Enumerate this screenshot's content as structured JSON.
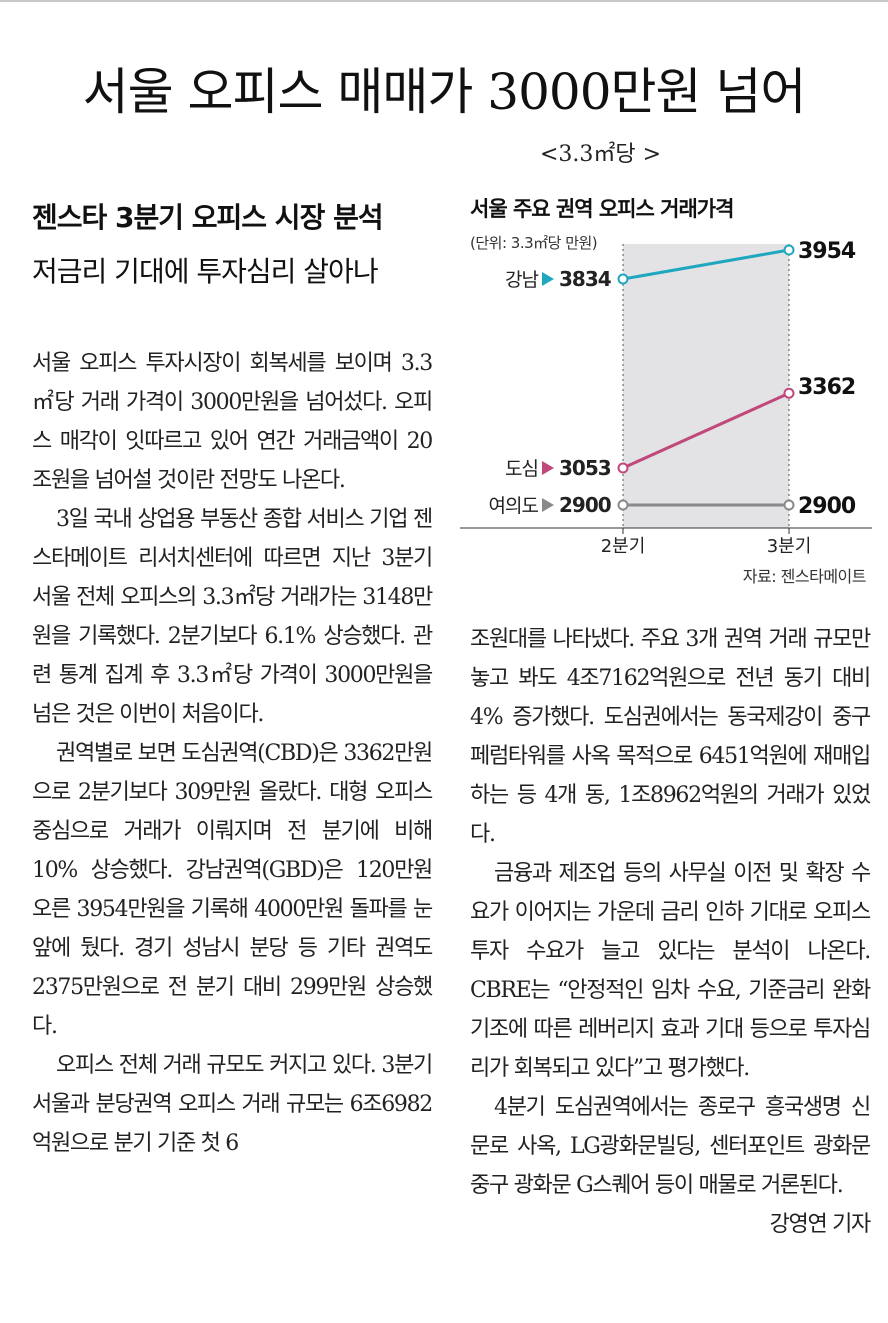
{
  "headline": "서울 오피스 매매가 3000만원 넘어",
  "unit_note": "<3.3㎡당 >",
  "subheadline1": "젠스타 3분기 오피스 시장 분석",
  "subheadline2": "저금리 기대에 투자심리 살아나",
  "chart": {
    "title": "서울 주요 권역 오피스 거래가격",
    "unit": "(단위: 3.3㎡당 만원)",
    "source": "자료: 젠스타메이트"
  },
  "chart_data": {
    "type": "line",
    "x": [
      "2분기",
      "3분기"
    ],
    "series": [
      {
        "name": "강남",
        "values": [
          3834,
          3954
        ],
        "color": "#1ea7bf"
      },
      {
        "name": "도심",
        "values": [
          3053,
          3362
        ],
        "color": "#c1487a"
      },
      {
        "name": "여의도",
        "values": [
          2900,
          2900
        ],
        "color": "#8a8a8a"
      }
    ],
    "value_labels": {
      "start": [
        "3834",
        "3053",
        "2900"
      ],
      "end": [
        "3954",
        "3362",
        "2900"
      ]
    },
    "shaded_band_between_x": true
  },
  "left_paragraphs": [
    "서울 오피스 투자시장이 회복세를 보이며 3.3㎡당 거래 가격이 3000만원을 넘어섰다. 오피스 매각이 잇따르고 있어 연간 거래금액이 20조원을 넘어설 것이란 전망도 나온다.",
    "3일 국내 상업용 부동산 종합 서비스 기업 젠스타메이트 리서치센터에 따르면 지난 3분기 서울 전체 오피스의 3.3㎡당 거래가는 3148만원을 기록했다. 2분기보다 6.1% 상승했다. 관련 통계 집계 후 3.3㎡당 가격이 3000만원을 넘은 것은 이번이 처음이다.",
    "권역별로 보면 도심권역(CBD)은 3362만원으로 2분기보다 309만원 올랐다. 대형 오피스 중심으로 거래가 이뤄지며 전 분기에 비해 10% 상승했다. 강남권역(GBD)은 120만원 오른 3954만원을 기록해 4000만원 돌파를 눈앞에 뒀다. 경기 성남시 분당 등 기타 권역도 2375만원으로 전 분기 대비 299만원 상승했다.",
    "오피스 전체 거래 규모도 커지고 있다. 3분기 서울과 분당권역 오피스 거래 규모는 6조6982억원으로 분기 기준 첫 6"
  ],
  "right_paragraphs": [
    "조원대를 나타냈다. 주요 3개 권역 거래 규모만 놓고 봐도 4조7162억원으로 전년 동기 대비 4% 증가했다. 도심권에서는 동국제강이 중구 페럼타워를 사옥 목적으로 6451억원에 재매입하는 등 4개 동, 1조8962억원의 거래가 있었다.",
    "금융과 제조업 등의 사무실 이전 및 확장 수요가 이어지는 가운데 금리 인하 기대로 오피스 투자 수요가 늘고 있다는 분석이 나온다. CBRE는 “안정적인 임차 수요, 기준금리 완화 기조에 따른 레버리지 효과 기대 등으로 투자심리가 회복되고 있다”고 평가했다.",
    "4분기 도심권역에서는 종로구 흥국생명 신문로 사옥, LG광화문빌딩, 센터포인트 광화문 중구 광화문 G스퀘어 등이 매물로 거론된다."
  ],
  "byline": "강영연 기자"
}
